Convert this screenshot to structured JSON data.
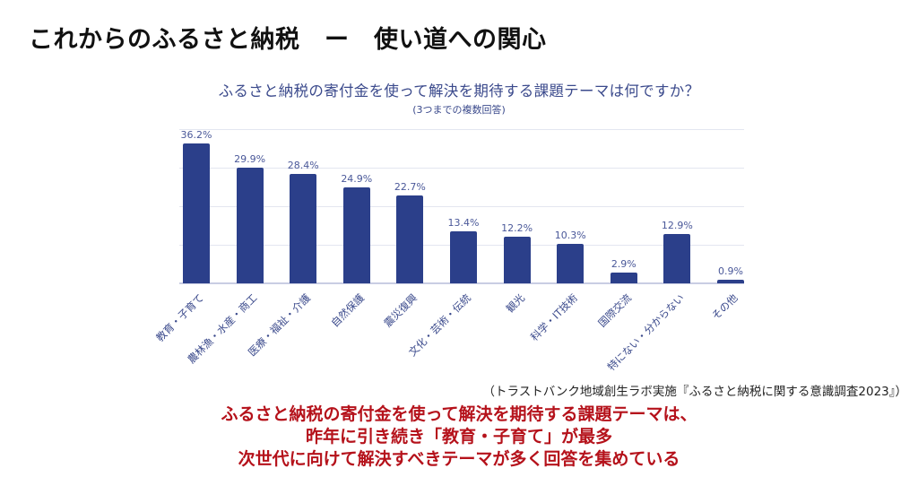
{
  "page": {
    "title": "これからのふるさと納税　ー　使い道への関心"
  },
  "chart_data": {
    "type": "bar",
    "title": "ふるさと納税の寄付金を使って解決を期待する課題テーマは何ですか？",
    "subtitle": "(3つまでの複数回答)",
    "categories": [
      "教育・子育て",
      "農林漁・水産・商工",
      "医療・福祉・介護",
      "自然保護",
      "震災復興",
      "文化・芸術・伝統",
      "観光",
      "科学・IT技術",
      "国際交流",
      "特にない・分からない",
      "その他"
    ],
    "values": [
      36.2,
      29.9,
      28.4,
      24.9,
      22.7,
      13.4,
      12.2,
      10.3,
      2.9,
      12.9,
      0.9
    ],
    "value_labels": [
      "36.2%",
      "29.9%",
      "28.4%",
      "24.9%",
      "22.7%",
      "13.4%",
      "12.2%",
      "10.3%",
      "2.9%",
      "12.9%",
      "0.9%"
    ],
    "xlabel": "",
    "ylabel": "",
    "ylim": [
      0,
      40
    ],
    "grid": true,
    "gridlines": [
      10,
      20,
      30,
      40
    ],
    "y_tick_labels_shown": false,
    "legend": null,
    "bar_color": "#2b3f8a"
  },
  "source": "（トラストバンク地域創生ラボ実施『ふるさと納税に関する意識調査2023』）",
  "conclusion": {
    "lines": [
      "ふるさと納税の寄付金を使って解決を期待する課題テーマは、",
      "昨年に引き続き「教育・子育て」が最多",
      "次世代に向けて解決すべきテーマが多く回答を集めている"
    ],
    "color": "#b5121b"
  }
}
